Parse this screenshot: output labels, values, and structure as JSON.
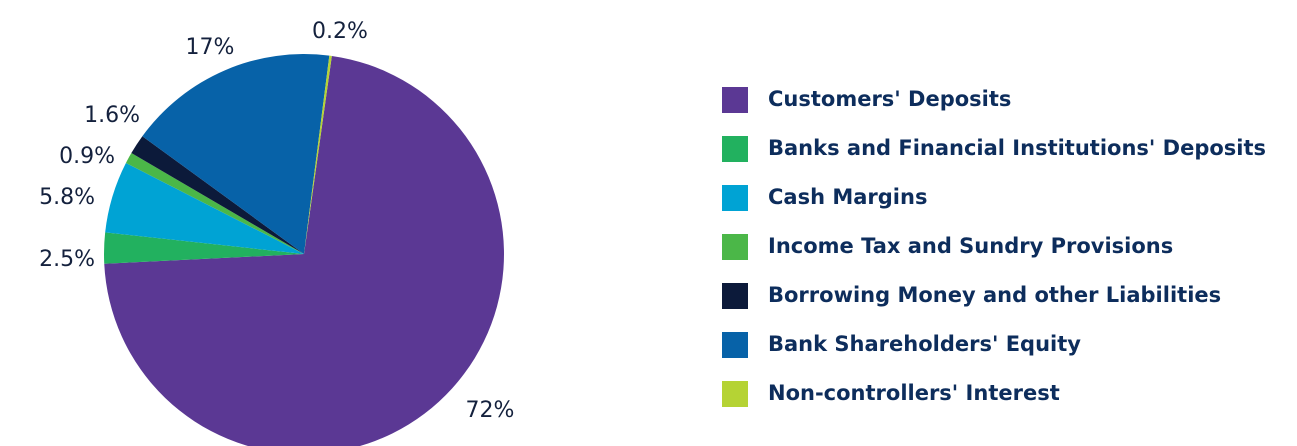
{
  "chart_data": {
    "type": "pie",
    "categories": [
      "Customers' Deposits",
      "Banks and Financial Institutions' Deposits",
      "Cash Margins",
      "Income Tax and Sundry Provisions",
      "Borrowing Money and other Liabilities",
      "Bank Shareholders' Equity",
      "Non-controllers' Interest"
    ],
    "values": [
      72,
      2.5,
      5.8,
      0.9,
      1.6,
      17,
      0.2
    ],
    "value_labels": [
      "72%",
      "2.5%",
      "5.8%",
      "0.9%",
      "1.6%",
      "17%",
      "0.2%"
    ],
    "colors": [
      "#5b3894",
      "#22b15f",
      "#00a3d4",
      "#4bb748",
      "#0c1a3a",
      "#0762a8",
      "#b5d334"
    ],
    "legend": "right"
  }
}
